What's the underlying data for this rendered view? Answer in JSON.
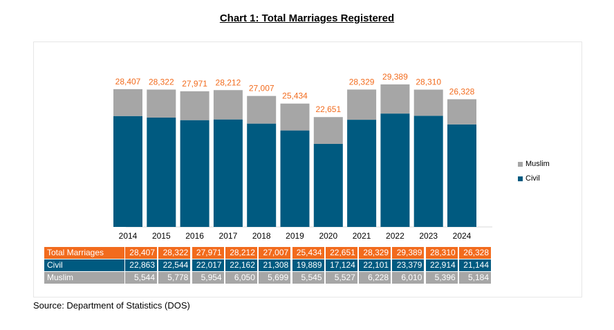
{
  "title": "Chart 1: Total Marriages Registered",
  "source": "Source: Department of Statistics (DOS)",
  "colors": {
    "civil": "#005A80",
    "muslim": "#A6A6A6",
    "total_label": "#F26B1D",
    "total_row": "#F26B1D"
  },
  "legend": {
    "muslim": "Muslim",
    "civil": "Civil",
    "placement": "right"
  },
  "table": {
    "row_labels": {
      "total": "Total Marriages",
      "civil": "Civil",
      "muslim": "Muslim"
    },
    "total": [
      "28,407",
      "28,322",
      "27,971",
      "28,212",
      "27,007",
      "25,434",
      "22,651",
      "28,329",
      "29,389",
      "28,310",
      "26,328"
    ],
    "civil": [
      "22,863",
      "22,544",
      "22,017",
      "22,162",
      "21,308",
      "19,889",
      "17,124",
      "22,101",
      "23,379",
      "22,914",
      "21,144"
    ],
    "muslim": [
      "5,544",
      "5,778",
      "5,954",
      "6,050",
      "5,699",
      "5,545",
      "5,527",
      "6,228",
      "6,010",
      "5,396",
      "5,184"
    ]
  },
  "chart_data": {
    "type": "bar",
    "stacked": true,
    "title": "Chart 1: Total Marriages Registered",
    "categories": [
      "2014",
      "2015",
      "2016",
      "2017",
      "2018",
      "2019",
      "2020",
      "2021",
      "2022",
      "2023",
      "2024"
    ],
    "series": [
      {
        "name": "Civil",
        "values": [
          22863,
          22544,
          22017,
          22162,
          21308,
          19889,
          17124,
          22101,
          23379,
          22914,
          21144
        ]
      },
      {
        "name": "Muslim",
        "values": [
          5544,
          5778,
          5954,
          6050,
          5699,
          5545,
          5527,
          6228,
          6010,
          5396,
          5184
        ]
      }
    ],
    "totals": [
      28407,
      28322,
      27971,
      28212,
      27007,
      25434,
      22651,
      28329,
      29389,
      28310,
      26328
    ],
    "total_labels": [
      "28,407",
      "28,322",
      "27,971",
      "28,212",
      "27,007",
      "25,434",
      "22,651",
      "28,329",
      "29,389",
      "28,310",
      "26,328"
    ],
    "ylim": [
      0,
      30000
    ],
    "grid": false,
    "legend": "right"
  }
}
